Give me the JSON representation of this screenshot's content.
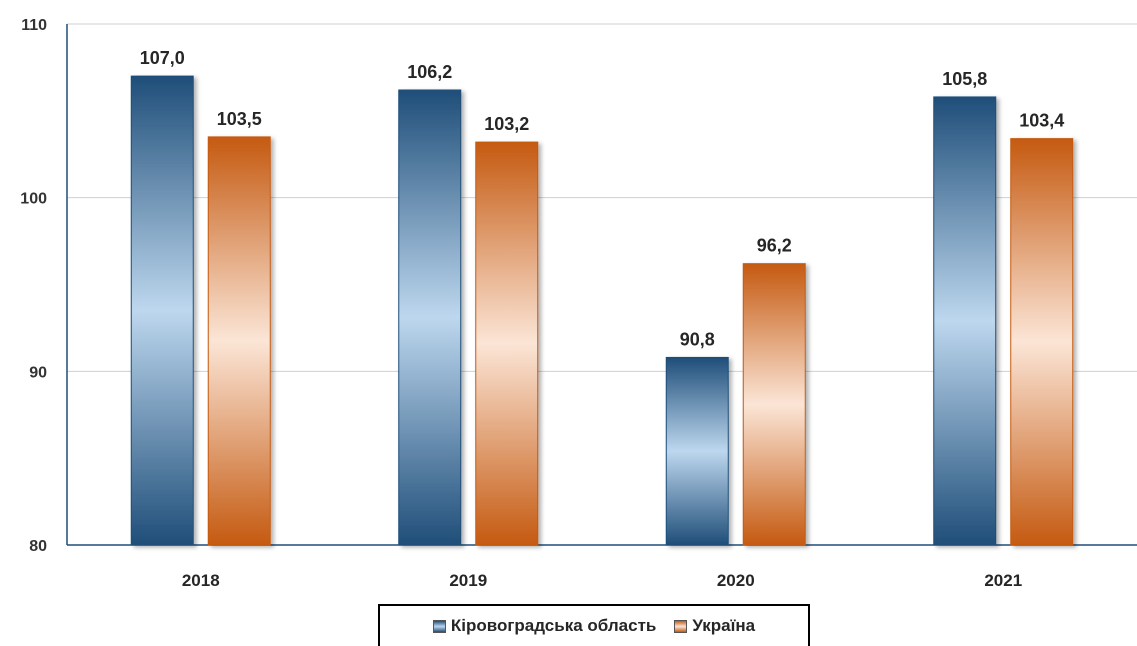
{
  "chart_data": {
    "type": "bar",
    "categories": [
      "2018",
      "2019",
      "2020",
      "2021"
    ],
    "series": [
      {
        "name": "Кіровоградська область",
        "values": [
          107.0,
          106.2,
          90.8,
          105.8
        ],
        "labels": [
          "107,0",
          "106,2",
          "90,8",
          "105,8"
        ],
        "color": "#1f4e79"
      },
      {
        "name": "Україна",
        "values": [
          103.5,
          103.2,
          96.2,
          103.4
        ],
        "labels": [
          "103,5",
          "103,2",
          "96,2",
          "103,4"
        ],
        "color": "#c55a11"
      }
    ],
    "ylim": [
      80,
      110
    ],
    "yticks": [
      "80",
      "90",
      "100",
      "110"
    ],
    "grid": true,
    "legend": "bottom"
  }
}
